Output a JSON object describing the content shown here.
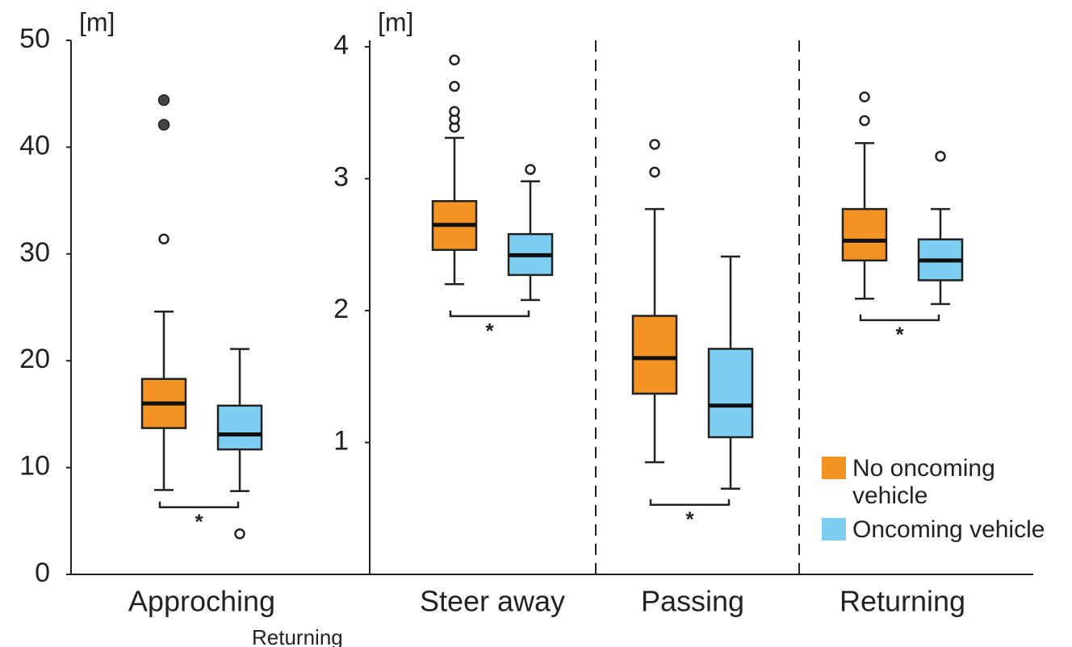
{
  "chart_data": [
    {
      "type": "box",
      "ylabel": "[m]",
      "categories": [
        "Approching"
      ],
      "ylim": [
        0,
        50
      ],
      "yticks": [
        0,
        10,
        20,
        30,
        40,
        50
      ],
      "annotations": [
        "*"
      ],
      "series": [
        {
          "color": "#f39323",
          "boxes": [
            {
              "whislo": 7.9,
              "q1": 13.7,
              "med": 16.0,
              "q3": 18.3,
              "whishi": 24.6,
              "fliers": [
                31.4
              ],
              "filled_fliers": [
                42.1,
                44.4
              ]
            }
          ]
        },
        {
          "color": "#7dcef0",
          "boxes": [
            {
              "whislo": 7.8,
              "q1": 11.7,
              "med": 13.1,
              "q3": 15.8,
              "whishi": 21.1,
              "fliers": [
                3.8
              ],
              "filled_fliers": []
            }
          ]
        }
      ]
    },
    {
      "type": "box",
      "ylabel": "[m]",
      "categories": [
        "Steer away",
        "Passing",
        "Returning"
      ],
      "ylim": [
        0,
        4
      ],
      "yticks": [
        1,
        2,
        3,
        4
      ],
      "annotations": [
        "*",
        "*",
        "*"
      ],
      "series": [
        {
          "name": "No oncoming vehicle",
          "color": "#f39323",
          "boxes": [
            {
              "whislo": 2.2,
              "q1": 2.46,
              "med": 2.65,
              "q3": 2.83,
              "whishi": 3.31,
              "fliers": [
                3.39,
                3.45,
                3.51,
                3.7,
                3.9
              ]
            },
            {
              "whislo": 0.85,
              "q1": 1.37,
              "med": 1.64,
              "q3": 1.96,
              "whishi": 2.77,
              "fliers": [
                3.05,
                3.26
              ]
            },
            {
              "whislo": 2.09,
              "q1": 2.38,
              "med": 2.53,
              "q3": 2.77,
              "whishi": 3.27,
              "fliers": [
                3.44,
                3.62
              ]
            }
          ]
        },
        {
          "name": "Oncoming vehicle",
          "color": "#7dcef0",
          "boxes": [
            {
              "whislo": 2.08,
              "q1": 2.27,
              "med": 2.42,
              "q3": 2.58,
              "whishi": 2.98,
              "fliers": [
                3.07
              ]
            },
            {
              "whislo": 0.65,
              "q1": 1.04,
              "med": 1.28,
              "q3": 1.71,
              "whishi": 2.41,
              "fliers": []
            },
            {
              "whislo": 2.05,
              "q1": 2.23,
              "med": 2.38,
              "q3": 2.54,
              "whishi": 2.77,
              "fliers": [
                3.17
              ]
            }
          ]
        }
      ]
    }
  ],
  "cropped_text": "Returning"
}
